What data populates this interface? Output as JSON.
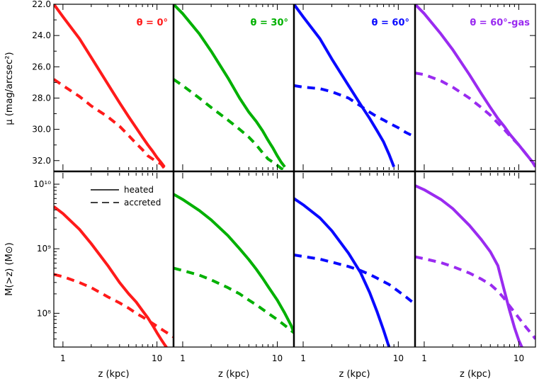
{
  "panel_titles": [
    "θ = 0°",
    "θ = 30°",
    "θ = 60°",
    "θ = 60°-gas"
  ],
  "legend": [
    "heated",
    "accreted"
  ],
  "axes": {
    "top_ylabel": "μ (mag/arcsec²)",
    "bottom_ylabel": "M(>z) (M⊙)",
    "xlabel": "z (kpc)",
    "top_yticks": [
      "22.0",
      "24.0",
      "26.0",
      "28.0",
      "30.0",
      "32.0"
    ],
    "bottom_yticks": [
      "10¹⁰",
      "10⁹",
      "10⁸"
    ],
    "xticks": [
      "1",
      "10"
    ]
  },
  "colors": [
    "#ff1a1a",
    "#00b000",
    "#0a0aff",
    "#9a2bf0"
  ],
  "chart_data": {
    "type": "line",
    "x_scale": "log",
    "x_range": [
      0.8,
      15
    ],
    "top_ylim": [
      22.0,
      32.6
    ],
    "top_y_inverted": true,
    "bottom_y_scale": "log",
    "bottom_ylim": [
      30000000.0,
      15000000000.0
    ],
    "panels": [
      {
        "title": "θ = 0°",
        "top": {
          "heated": {
            "x": [
              0.8,
              1,
              1.5,
              2,
              3,
              4,
              5,
              6,
              7,
              8,
              9,
              10,
              11,
              12
            ],
            "y": [
              22.0,
              22.8,
              24.2,
              25.4,
              27.1,
              28.3,
              29.2,
              29.9,
              30.5,
              31.0,
              31.4,
              31.8,
              32.1,
              32.4
            ]
          },
          "accreted": {
            "x": [
              0.8,
              1,
              1.5,
              2,
              3,
              4,
              5,
              6,
              7,
              8,
              9,
              10,
              11,
              12
            ],
            "y": [
              26.8,
              27.2,
              27.9,
              28.5,
              29.2,
              29.8,
              30.4,
              30.9,
              31.3,
              31.7,
              31.9,
              32.1,
              32.2,
              32.5
            ]
          }
        },
        "bottom": {
          "heated": {
            "x": [
              0.8,
              1,
              1.5,
              2,
              3,
              4,
              5,
              6,
              7,
              8,
              9,
              10,
              11,
              12,
              13
            ],
            "y": [
              4500000000.0,
              3500000000.0,
              2000000000.0,
              1200000000.0,
              550000000.0,
              300000000.0,
              200000000.0,
              150000000.0,
              110000000.0,
              85000000.0,
              65000000.0,
              50000000.0,
              40000000.0,
              33000000.0,
              28000000.0
            ]
          },
          "accreted": {
            "x": [
              0.8,
              1,
              1.5,
              2,
              3,
              4,
              5,
              6,
              7,
              8,
              10,
              12,
              14,
              15
            ],
            "y": [
              400000000.0,
              370000000.0,
              300000000.0,
              250000000.0,
              180000000.0,
              145000000.0,
              120000000.0,
              100000000.0,
              88000000.0,
              78000000.0,
              63000000.0,
              53000000.0,
              46000000.0,
              43000000.0
            ]
          }
        }
      },
      {
        "title": "θ = 30°",
        "top": {
          "heated": {
            "x": [
              0.8,
              1,
              1.5,
              2,
              3,
              4,
              5,
              6,
              7,
              8,
              9,
              10,
              11,
              12
            ],
            "y": [
              22.0,
              22.6,
              23.9,
              25.0,
              26.7,
              28.0,
              28.9,
              29.5,
              30.1,
              30.7,
              31.2,
              31.7,
              32.1,
              32.4
            ]
          },
          "accreted": {
            "x": [
              0.8,
              1,
              1.5,
              2,
              3,
              4,
              5,
              6,
              7,
              8,
              9,
              10,
              11,
              12
            ],
            "y": [
              26.8,
              27.2,
              28.0,
              28.6,
              29.4,
              30.0,
              30.5,
              31.0,
              31.5,
              31.9,
              32.1,
              32.3,
              32.5,
              32.6
            ]
          }
        },
        "bottom": {
          "heated": {
            "x": [
              0.8,
              1,
              1.5,
              2,
              3,
              4,
              5,
              6,
              7,
              8,
              10,
              12,
              14,
              15
            ],
            "y": [
              7000000000.0,
              5800000000.0,
              3900000000.0,
              2800000000.0,
              1600000000.0,
              1000000000.0,
              680000000.0,
              480000000.0,
              350000000.0,
              260000000.0,
              160000000.0,
              100000000.0,
              65000000.0,
              50000000.0
            ]
          },
          "accreted": {
            "x": [
              0.8,
              1,
              1.5,
              2,
              3,
              4,
              5,
              6,
              7,
              8,
              10,
              12,
              14,
              15
            ],
            "y": [
              500000000.0,
              460000000.0,
              390000000.0,
              330000000.0,
              250000000.0,
              200000000.0,
              160000000.0,
              135000000.0,
              115000000.0,
              100000000.0,
              80000000.0,
              65000000.0,
              54000000.0,
              50000000.0
            ]
          }
        }
      },
      {
        "title": "θ = 60°",
        "top": {
          "heated": {
            "x": [
              0.8,
              1,
              1.5,
              2,
              3,
              4,
              5,
              6,
              7,
              8,
              9
            ],
            "y": [
              22.0,
              22.8,
              24.2,
              25.5,
              27.2,
              28.4,
              29.3,
              30.1,
              30.8,
              31.6,
              32.4
            ]
          },
          "accreted": {
            "x": [
              0.8,
              1,
              1.5,
              2,
              3,
              4,
              5,
              6,
              7,
              8,
              10,
              12,
              14,
              15
            ],
            "y": [
              27.2,
              27.3,
              27.4,
              27.6,
              28.0,
              28.5,
              28.9,
              29.2,
              29.4,
              29.6,
              29.9,
              30.2,
              30.4,
              30.5
            ]
          }
        },
        "bottom": {
          "heated": {
            "x": [
              0.8,
              1,
              1.5,
              2,
              3,
              4,
              5,
              6,
              7,
              8
            ],
            "y": [
              6000000000.0,
              4800000000.0,
              3000000000.0,
              1900000000.0,
              850000000.0,
              430000000.0,
              210000000.0,
              105000000.0,
              55000000.0,
              30000000.0
            ]
          },
          "accreted": {
            "x": [
              0.8,
              1,
              1.5,
              2,
              3,
              4,
              5,
              6,
              7,
              8,
              10,
              12,
              14,
              15
            ],
            "y": [
              800000000.0,
              760000000.0,
              690000000.0,
              620000000.0,
              530000000.0,
              460000000.0,
              400000000.0,
              350000000.0,
              310000000.0,
              280000000.0,
              220000000.0,
              180000000.0,
              150000000.0,
              135000000.0
            ]
          }
        }
      },
      {
        "title": "θ = 60°-gas",
        "top": {
          "heated": {
            "x": [
              0.8,
              1,
              1.5,
              2,
              3,
              4,
              5,
              6,
              7,
              8,
              10,
              12,
              14,
              15
            ],
            "y": [
              22.0,
              22.6,
              23.9,
              24.9,
              26.5,
              27.7,
              28.6,
              29.3,
              29.8,
              30.3,
              31.0,
              31.6,
              32.1,
              32.4
            ]
          },
          "accreted": {
            "x": [
              0.8,
              1,
              1.5,
              2,
              3,
              4,
              5,
              6,
              7,
              8,
              10,
              12,
              14,
              15
            ],
            "y": [
              26.4,
              26.5,
              26.9,
              27.3,
              28.0,
              28.6,
              29.1,
              29.6,
              30.0,
              30.4,
              31.0,
              31.6,
              32.1,
              32.4
            ]
          }
        },
        "bottom": {
          "heated": {
            "x": [
              0.8,
              1,
              1.5,
              2,
              3,
              4,
              5,
              6,
              7,
              8,
              9,
              10,
              11
            ],
            "y": [
              9500000000.0,
              8200000000.0,
              5800000000.0,
              4200000000.0,
              2300000000.0,
              1400000000.0,
              900000000.0,
              550000000.0,
              230000000.0,
              110000000.0,
              60000000.0,
              38000000.0,
              28000000.0
            ]
          },
          "accreted": {
            "x": [
              0.8,
              1,
              1.5,
              2,
              3,
              4,
              5,
              6,
              7,
              8,
              10,
              12,
              14,
              15
            ],
            "y": [
              750000000.0,
              700000000.0,
              610000000.0,
              530000000.0,
              420000000.0,
              340000000.0,
              280000000.0,
              220000000.0,
              170000000.0,
              130000000.0,
              85000000.0,
              60000000.0,
              46000000.0,
              40000000.0
            ]
          }
        }
      }
    ]
  }
}
